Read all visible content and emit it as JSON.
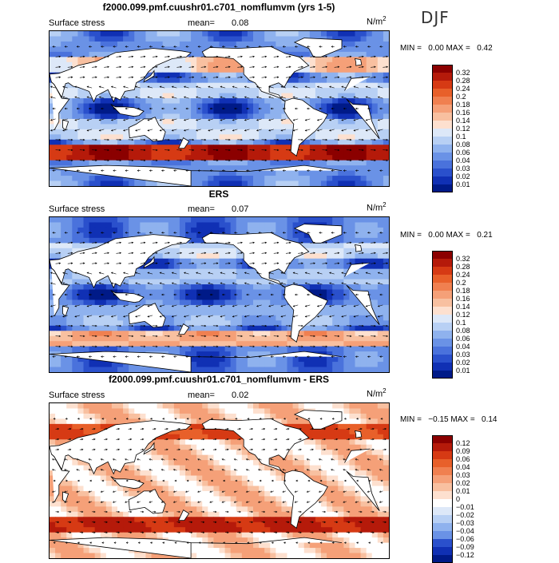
{
  "season": "DJF",
  "panels": [
    {
      "title": "f2000.099.pmf.cuushr01.c701_nomflumvm (yrs 1-5)",
      "label": "Surface stress",
      "mean_label": "mean=",
      "mean": "0.08",
      "units": "N/m",
      "units_sup": "2",
      "min_label": "MIN =",
      "min": "0.00",
      "max_label": "MAX =",
      "max": "0.42",
      "colorbar": [
        "0.32",
        "0.28",
        "0.24",
        "0.2",
        "0.18",
        "0.16",
        "0.14",
        "0.12",
        "0.1",
        "0.08",
        "0.06",
        "0.04",
        "0.03",
        "0.02",
        "0.01"
      ],
      "colors": [
        "#8b0000",
        "#b51a0a",
        "#d63a14",
        "#e8602a",
        "#f08050",
        "#f5a078",
        "#f8c0a0",
        "#fde0cf",
        "#dde8f8",
        "#b8d0f4",
        "#8fb2ee",
        "#6a92e6",
        "#4a72dc",
        "#2a50cc",
        "#1030b4",
        "#001a88"
      ]
    },
    {
      "title": "ERS",
      "label": "Surface stress",
      "mean_label": "mean=",
      "mean": "0.07",
      "units": "N/m",
      "units_sup": "2",
      "min_label": "MIN =",
      "min": "0.00",
      "max_label": "MAX =",
      "max": "0.21",
      "colorbar": [
        "0.32",
        "0.28",
        "0.24",
        "0.2",
        "0.18",
        "0.16",
        "0.14",
        "0.12",
        "0.1",
        "0.08",
        "0.06",
        "0.04",
        "0.03",
        "0.02",
        "0.01"
      ],
      "colors": [
        "#8b0000",
        "#b51a0a",
        "#d63a14",
        "#e8602a",
        "#f08050",
        "#f5a078",
        "#f8c0a0",
        "#fde0cf",
        "#dde8f8",
        "#b8d0f4",
        "#8fb2ee",
        "#6a92e6",
        "#4a72dc",
        "#2a50cc",
        "#1030b4",
        "#001a88"
      ]
    },
    {
      "title": "f2000.099.pmf.cuushr01.c701_nomflumvm - ERS",
      "label": "Surface stress",
      "mean_label": "mean=",
      "mean": "0.02",
      "units": "N/m",
      "units_sup": "2",
      "min_label": "MIN =",
      "min": "−0.15",
      "max_label": "MAX =",
      "max": "0.14",
      "colorbar": [
        "0.12",
        "0.09",
        "0.06",
        "0.04",
        "0.03",
        "0.02",
        "0.01",
        "0",
        "−0.01",
        "−0.02",
        "−0.03",
        "−0.04",
        "−0.06",
        "−0.09",
        "−0.12"
      ],
      "colors": [
        "#8b0000",
        "#b51a0a",
        "#d63a14",
        "#e8602a",
        "#f08050",
        "#f5a078",
        "#f8c0a0",
        "#fde0cf",
        "#ffffff",
        "#dde8f8",
        "#b8d0f4",
        "#8fb2ee",
        "#6a92e6",
        "#2a50cc",
        "#1030b4",
        "#001a88"
      ]
    }
  ],
  "chart_data": [
    {
      "type": "heatmap",
      "title": "f2000.099.pmf.cuushr01.c701_nomflumvm (yrs 1-5)",
      "variable": "Surface stress",
      "season": "DJF",
      "units": "N/m2",
      "mean": 0.08,
      "min": 0.0,
      "max": 0.42,
      "levels": [
        0.01,
        0.02,
        0.03,
        0.04,
        0.06,
        0.08,
        0.1,
        0.12,
        0.14,
        0.16,
        0.18,
        0.2,
        0.24,
        0.28,
        0.32
      ]
    },
    {
      "type": "heatmap",
      "title": "ERS",
      "variable": "Surface stress",
      "season": "DJF",
      "units": "N/m2",
      "mean": 0.07,
      "min": 0.0,
      "max": 0.21,
      "levels": [
        0.01,
        0.02,
        0.03,
        0.04,
        0.06,
        0.08,
        0.1,
        0.12,
        0.14,
        0.16,
        0.18,
        0.2,
        0.24,
        0.28,
        0.32
      ]
    },
    {
      "type": "heatmap",
      "title": "f2000.099.pmf.cuushr01.c701_nomflumvm - ERS",
      "variable": "Surface stress",
      "season": "DJF",
      "units": "N/m2",
      "mean": 0.02,
      "min": -0.15,
      "max": 0.14,
      "levels": [
        -0.12,
        -0.09,
        -0.06,
        -0.04,
        -0.03,
        -0.02,
        -0.01,
        0,
        0.01,
        0.02,
        0.03,
        0.04,
        0.06,
        0.09,
        0.12
      ]
    }
  ]
}
